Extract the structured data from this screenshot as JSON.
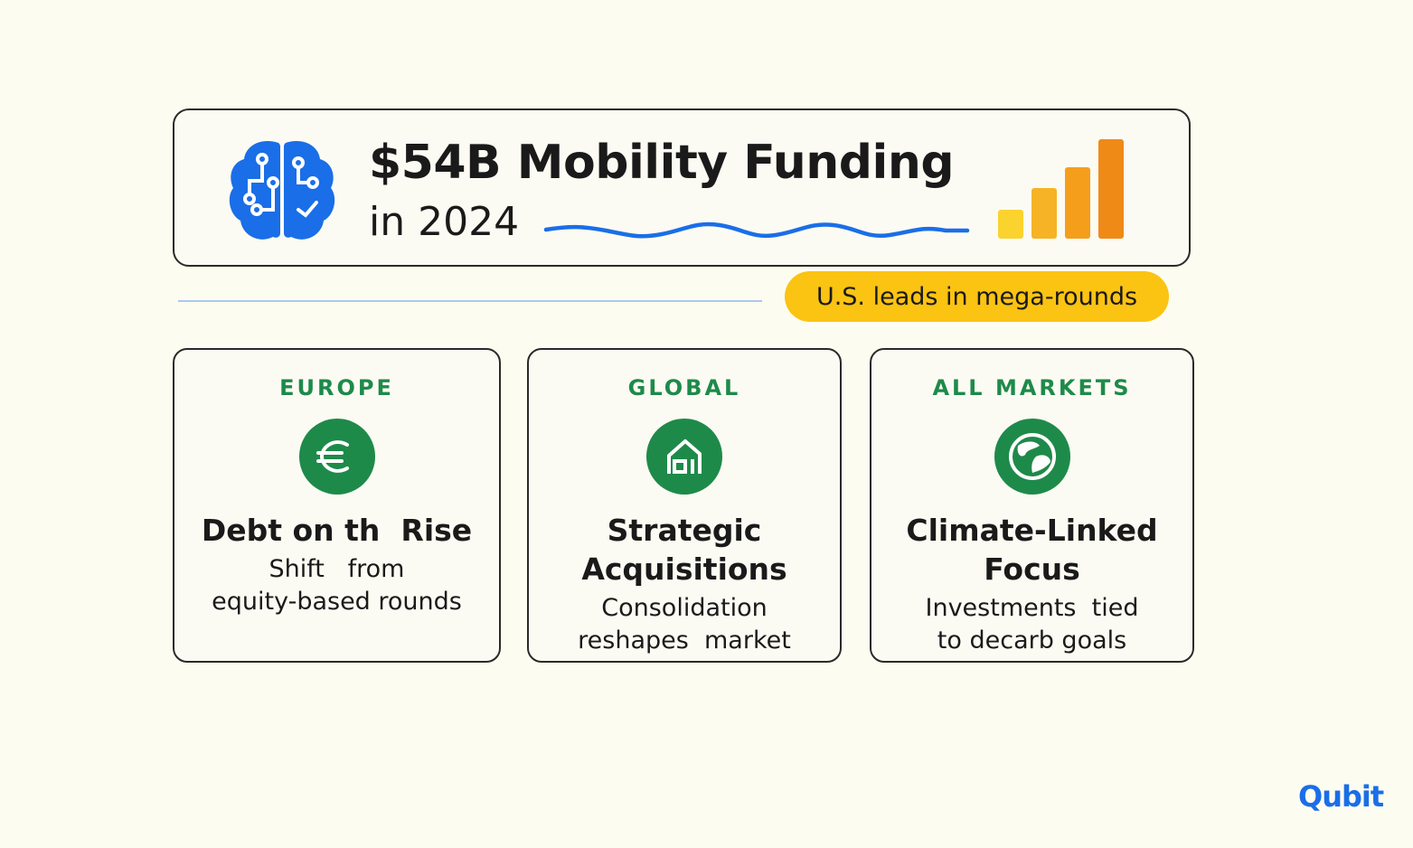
{
  "header": {
    "title": "$54B Mobility Funding",
    "subtitle": "in 2024",
    "icons": {
      "left": "brain-circuit-icon",
      "right": "rising-bars-icon"
    }
  },
  "callout": {
    "label": "U.S. leads in mega-rounds"
  },
  "cards": [
    {
      "eyebrow": "EUROPE",
      "icon": "euro-icon",
      "title_lines": [
        "Debt on th  Rise"
      ],
      "desc_lines": [
        "Shift   from",
        "equity-based rounds"
      ]
    },
    {
      "eyebrow": "GLOBAL",
      "icon": "building-icon",
      "title_lines": [
        "Strategic",
        "Acquisitions"
      ],
      "desc_lines": [
        "Consolidation",
        "reshapes  market"
      ]
    },
    {
      "eyebrow": "ALL MARKETS",
      "icon": "globe-leaf-icon",
      "title_lines": [
        "Climate-Linked",
        "Focus"
      ],
      "desc_lines": [
        "Investments  tied",
        "to decarb goals"
      ]
    }
  ],
  "brand": {
    "logo_text": "Qubit"
  },
  "colors": {
    "background": "#fdfcf0",
    "accent_blue": "#1a6ee8",
    "accent_green": "#1e8a4a",
    "pill_yellow": "#fbc312",
    "bar_colors": [
      "#fbd32e",
      "#f6b325",
      "#f59e1c",
      "#ef8a17"
    ]
  }
}
